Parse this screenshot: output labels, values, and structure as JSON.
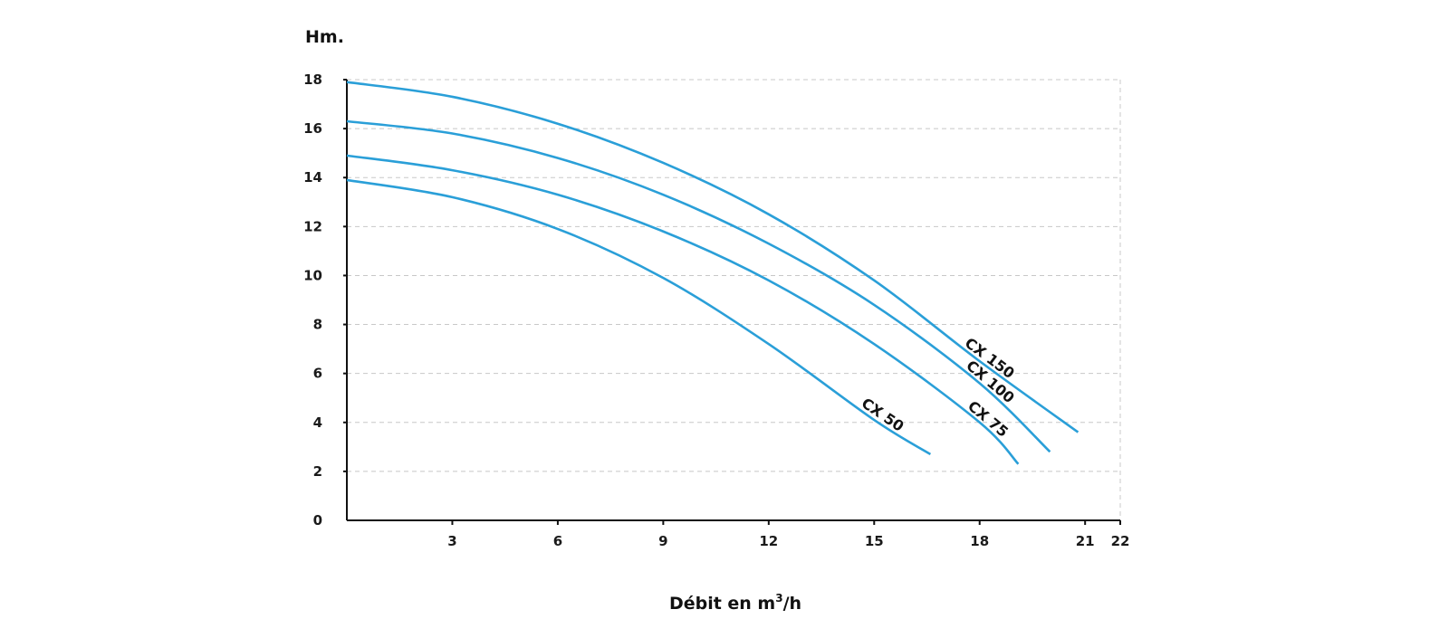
{
  "chart_data": {
    "type": "line",
    "ytitle": "Hm.",
    "xtitle": {
      "prefix": "Débit en m",
      "sup": "3",
      "suffix": "/h"
    },
    "xlim": [
      0,
      22
    ],
    "ylim": [
      0,
      18
    ],
    "xticks": [
      3,
      6,
      9,
      12,
      15,
      18,
      21,
      22
    ],
    "yticks": [
      0,
      2,
      4,
      6,
      8,
      10,
      12,
      14,
      16,
      18
    ],
    "grid": true,
    "line_color": "#2a9fd8",
    "series": [
      {
        "name": "CX 50",
        "x": [
          0,
          3,
          6,
          9,
          12,
          15,
          16.6
        ],
        "y": [
          13.9,
          13.2,
          11.9,
          9.9,
          7.2,
          4.1,
          2.7
        ]
      },
      {
        "name": "CX 75",
        "x": [
          0,
          3,
          6,
          9,
          12,
          15,
          18,
          19.1
        ],
        "y": [
          14.9,
          14.3,
          13.3,
          11.8,
          9.8,
          7.2,
          4.0,
          2.3
        ]
      },
      {
        "name": "CX 100",
        "x": [
          0,
          3,
          6,
          9,
          12,
          15,
          18,
          20
        ],
        "y": [
          16.3,
          15.8,
          14.8,
          13.3,
          11.3,
          8.8,
          5.6,
          2.8
        ]
      },
      {
        "name": "CX 150",
        "x": [
          0,
          3,
          6,
          9,
          12,
          15,
          18,
          20.8
        ],
        "y": [
          17.9,
          17.3,
          16.2,
          14.6,
          12.5,
          9.8,
          6.5,
          3.6
        ]
      }
    ]
  }
}
